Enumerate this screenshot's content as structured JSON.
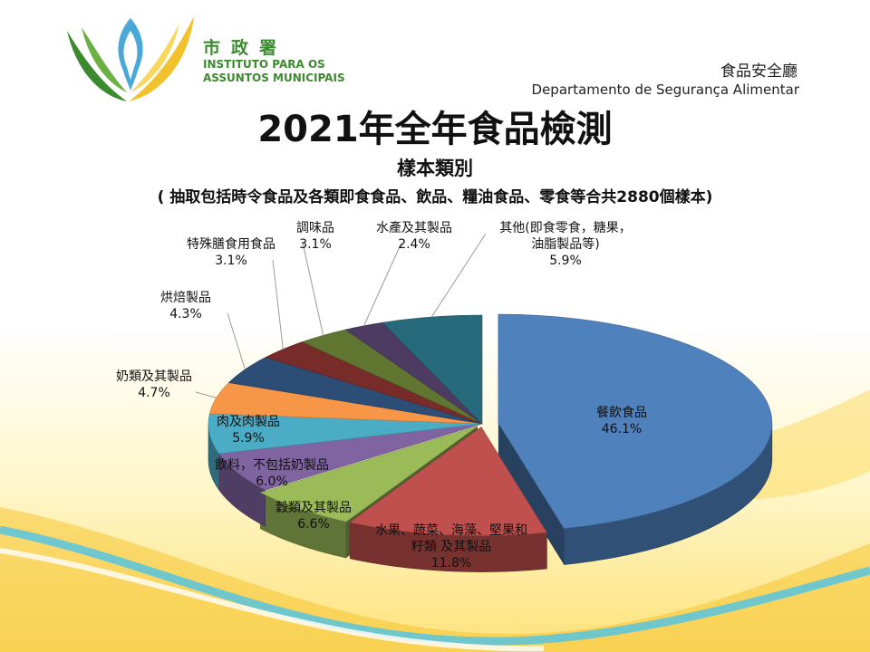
{
  "header": {
    "logo_cn": "市政署",
    "logo_pt_line1": "INSTITUTO PARA OS",
    "logo_pt_line2": "ASSUNTOS MUNICIPAIS",
    "dept_cn": "食品安全廳",
    "dept_pt": "Departamento de Segurança Alimentar"
  },
  "colors": {
    "brand_green": "#3c8a2e",
    "brand_yellow": "#f2c12e"
  },
  "chart_data": {
    "type": "pie",
    "style": "3d-exploded",
    "title": "2021年全年食品檢測",
    "subtitle": "樣本類別",
    "note": "( 抽取包括時令食品及各類即食食品、飲品、糧油食品、零食等合共2880個樣本)",
    "slices": [
      {
        "label": "餐飲食品",
        "value": 46.1,
        "pct_text": "46.1%",
        "color": "#4f81bd"
      },
      {
        "label": "水果、蔬菜、海藻、堅果和\n籽類 及其製品",
        "value": 11.8,
        "pct_text": "11.8%",
        "color": "#c0504d"
      },
      {
        "label": "穀類及其製品",
        "value": 6.6,
        "pct_text": "6.6%",
        "color": "#9bbb59"
      },
      {
        "label": "飲料，不包括奶製品",
        "value": 6.0,
        "pct_text": "6.0%",
        "color": "#8064a2"
      },
      {
        "label": "肉及肉製品",
        "value": 5.9,
        "pct_text": "5.9%",
        "color": "#4bacc6"
      },
      {
        "label": "奶類及其製品",
        "value": 4.7,
        "pct_text": "4.7%",
        "color": "#f79646"
      },
      {
        "label": "烘焙製品",
        "value": 4.3,
        "pct_text": "4.3%",
        "color": "#2c4d75"
      },
      {
        "label": "特殊膳食用食品",
        "value": 3.1,
        "pct_text": "3.1%",
        "color": "#772c2a"
      },
      {
        "label": "調味品",
        "value": 3.1,
        "pct_text": "3.1%",
        "color": "#5f7530"
      },
      {
        "label": "水產及其製品",
        "value": 2.4,
        "pct_text": "2.4%",
        "color": "#4d3b62"
      },
      {
        "label": "其他(即食零食，糖果，\n油脂製品等)",
        "value": 5.9,
        "pct_text": "5.9%",
        "color": "#276a7c"
      }
    ]
  }
}
